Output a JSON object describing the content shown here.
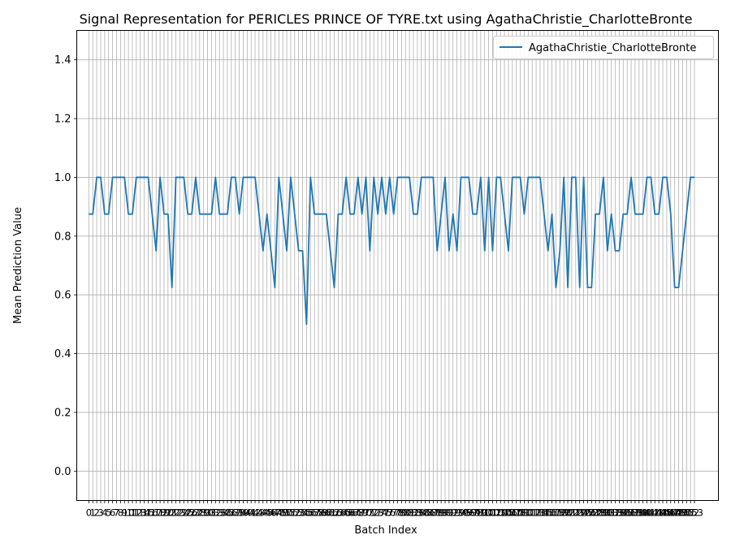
{
  "chart_data": {
    "type": "line",
    "title": "Signal Representation for PERICLES PRINCE OF TYRE.txt using AgathaChristie_CharlotteBronte",
    "xlabel": "Batch Index",
    "ylabel": "Mean Prediction Value",
    "xlim": [
      -3.05,
      159.05
    ],
    "ylim": [
      -0.1,
      1.5
    ],
    "yticks": [
      0.0,
      0.2,
      0.4,
      0.6,
      0.8,
      1.0,
      1.2,
      1.4
    ],
    "grid": true,
    "legend_position": "top-right",
    "series": [
      {
        "name": "AgathaChristie_CharlotteBronte",
        "color": "#1f77b4",
        "x": [
          0,
          1,
          2,
          3,
          4,
          5,
          6,
          7,
          8,
          9,
          10,
          11,
          12,
          13,
          14,
          15,
          16,
          17,
          18,
          19,
          20,
          21,
          22,
          23,
          24,
          25,
          26,
          27,
          28,
          29,
          30,
          31,
          32,
          33,
          34,
          35,
          36,
          37,
          38,
          39,
          40,
          41,
          42,
          43,
          44,
          45,
          46,
          47,
          48,
          49,
          50,
          51,
          52,
          53,
          54,
          55,
          56,
          57,
          58,
          59,
          60,
          61,
          62,
          63,
          64,
          65,
          66,
          67,
          68,
          69,
          70,
          71,
          72,
          73,
          74,
          75,
          76,
          77,
          78,
          79,
          80,
          81,
          82,
          83,
          84,
          85,
          86,
          87,
          88,
          89,
          90,
          91,
          92,
          93,
          94,
          95,
          96,
          97,
          98,
          99,
          100,
          101,
          102,
          103,
          104,
          105,
          106,
          107,
          108,
          109,
          110,
          111,
          112,
          113,
          114,
          115,
          116,
          117,
          118,
          119,
          120,
          121,
          122,
          123,
          124,
          125,
          126,
          127,
          128,
          129,
          130,
          131,
          132,
          133,
          134,
          135,
          136,
          137,
          138,
          139,
          140,
          141,
          142,
          143,
          144,
          145,
          146,
          147,
          148,
          149,
          150,
          151,
          152,
          153
        ],
        "values": [
          0.875,
          0.875,
          1.0,
          1.0,
          0.875,
          0.875,
          1.0,
          1.0,
          1.0,
          1.0,
          0.875,
          0.875,
          1.0,
          1.0,
          1.0,
          1.0,
          0.875,
          0.75,
          1.0,
          0.875,
          0.875,
          0.625,
          1.0,
          1.0,
          1.0,
          0.875,
          0.875,
          1.0,
          0.875,
          0.875,
          0.875,
          0.875,
          1.0,
          0.875,
          0.875,
          0.875,
          1.0,
          1.0,
          0.875,
          1.0,
          1.0,
          1.0,
          1.0,
          0.875,
          0.75,
          0.875,
          0.75,
          0.625,
          1.0,
          0.875,
          0.75,
          1.0,
          0.875,
          0.75,
          0.75,
          0.5,
          1.0,
          0.875,
          0.875,
          0.875,
          0.875,
          0.75,
          0.625,
          0.875,
          0.875,
          1.0,
          0.875,
          0.875,
          1.0,
          0.875,
          1.0,
          0.75,
          1.0,
          0.875,
          1.0,
          0.875,
          1.0,
          0.875,
          1.0,
          1.0,
          1.0,
          1.0,
          0.875,
          0.875,
          1.0,
          1.0,
          1.0,
          1.0,
          0.75,
          0.875,
          1.0,
          0.75,
          0.875,
          0.75,
          1.0,
          1.0,
          1.0,
          0.875,
          0.875,
          1.0,
          0.75,
          1.0,
          0.75,
          1.0,
          1.0,
          0.875,
          0.75,
          1.0,
          1.0,
          1.0,
          0.875,
          1.0,
          1.0,
          1.0,
          1.0,
          0.875,
          0.75,
          0.875,
          0.625,
          0.75,
          1.0,
          0.625,
          1.0,
          1.0,
          0.625,
          1.0,
          0.625,
          0.625,
          0.875,
          0.875,
          1.0,
          0.75,
          0.875,
          0.75,
          0.75,
          0.875,
          0.875,
          1.0,
          0.875,
          0.875,
          0.875,
          1.0,
          1.0,
          0.875,
          0.875,
          1.0,
          1.0,
          0.875,
          0.625,
          0.625,
          0.75,
          0.875,
          1.0,
          1.0
        ]
      }
    ]
  }
}
